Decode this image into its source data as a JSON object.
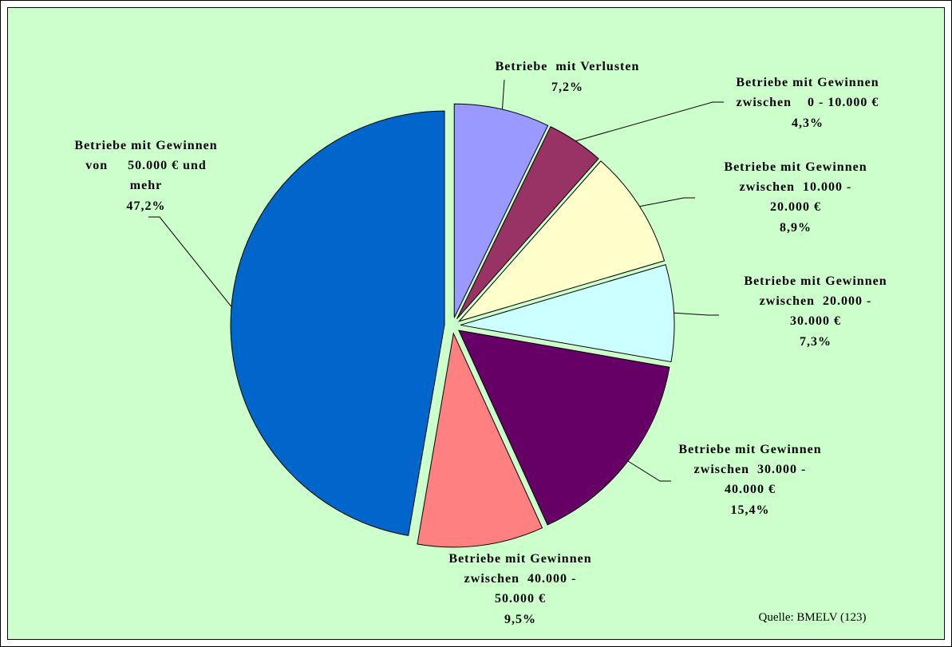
{
  "chart_data": {
    "type": "pie",
    "categories": [
      "Betriebe  mit Verlusten",
      "Betriebe mit Gewinnen\nzwischen    0 - 10.000 €",
      "Betriebe mit Gewinnen\nzwischen  10.000 -\n20.000 €",
      "Betriebe mit Gewinnen\nzwischen  20.000 -\n30.000 €",
      "Betriebe mit Gewinnen\nzwischen  30.000 -\n40.000 €",
      "Betriebe mit Gewinnen\nzwischen  40.000 -\n50.000 €",
      "Betriebe mit Gewinnen\nvon     50.000 € und\nmehr"
    ],
    "values": [
      7.2,
      4.3,
      8.9,
      7.3,
      15.4,
      9.5,
      47.2
    ],
    "value_labels": [
      "7,2%",
      "4,3%",
      "8,9%",
      "7,3%",
      "15,4%",
      "9,5%",
      "47,2%"
    ],
    "colors": [
      "#9999ff",
      "#993366",
      "#ffffcc",
      "#ccffff",
      "#660066",
      "#ff8080",
      "#0066cc"
    ],
    "source": "Quelle: BMELV (123)"
  }
}
